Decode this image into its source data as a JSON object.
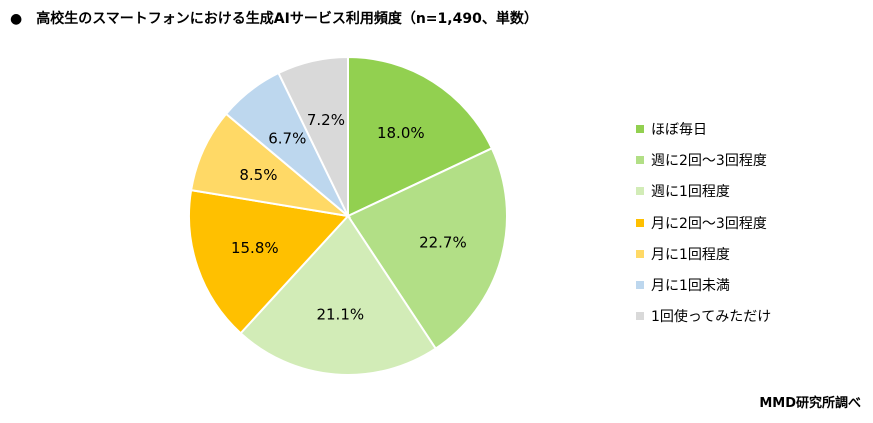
{
  "title": "高校生のスマートフォンにおける生成AIサービス利用頻度（n=1,490、単数）",
  "bullet": "●",
  "source": "MMD研究所調べ",
  "chart_data": {
    "type": "pie",
    "title": "高校生のスマートフォンにおける生成AIサービス利用頻度（n=1,490、単数）",
    "unit": "%",
    "legend_position": "right",
    "start": "12 o'clock, clockwise",
    "slices": [
      {
        "label": "ほぼ毎日",
        "value": 18.0,
        "color": "#92d050"
      },
      {
        "label": "週に2回～3回程度",
        "value": 22.7,
        "color": "#b2df86"
      },
      {
        "label": "週に1回程度",
        "value": 21.1,
        "color": "#d2ecb7"
      },
      {
        "label": "月に2回～3回程度",
        "value": 15.8,
        "color": "#ffc000"
      },
      {
        "label": "月に1回程度",
        "value": 8.5,
        "color": "#ffd966"
      },
      {
        "label": "月に1回未満",
        "value": 6.7,
        "color": "#bdd7ee"
      },
      {
        "label": "1回使ってみただけ",
        "value": 7.2,
        "color": "#d9d9d9"
      }
    ]
  }
}
